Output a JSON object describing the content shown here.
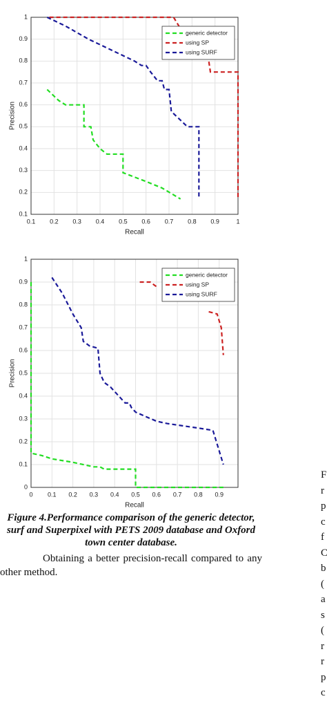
{
  "chart_data": [
    {
      "type": "line",
      "xlabel": "Recall",
      "ylabel": "Precision",
      "xlim": [
        0.1,
        1
      ],
      "ylim": [
        0.1,
        1
      ],
      "xticks": [
        0.1,
        0.2,
        0.3,
        0.4,
        0.5,
        0.6,
        0.7,
        0.8,
        0.9,
        1
      ],
      "yticks": [
        0.1,
        0.2,
        0.3,
        0.4,
        0.5,
        0.6,
        0.7,
        0.8,
        0.9,
        1
      ],
      "grid": true,
      "legend": "upper right",
      "linestyle": "dashed",
      "series": [
        {
          "name": "generic detector",
          "color": "#22dd22",
          "x": [
            0.17,
            0.22,
            0.25,
            0.33,
            0.33,
            0.36,
            0.37,
            0.4,
            0.43,
            0.5,
            0.5,
            0.6,
            0.67,
            0.75
          ],
          "values": [
            0.67,
            0.62,
            0.6,
            0.6,
            0.5,
            0.5,
            0.44,
            0.4,
            0.375,
            0.375,
            0.29,
            0.25,
            0.22,
            0.17
          ]
        },
        {
          "name": "using SP",
          "color": "#cc2222",
          "x": [
            0.18,
            0.72,
            0.8,
            0.82,
            0.87,
            0.88,
            0.98,
            1,
            1
          ],
          "values": [
            1,
            1,
            0.86,
            0.82,
            0.82,
            0.75,
            0.75,
            0.75,
            0.17
          ]
        },
        {
          "name": "using SURF",
          "color": "#1a1a99",
          "x": [
            0.17,
            0.25,
            0.35,
            0.45,
            0.55,
            0.58,
            0.6,
            0.62,
            0.65,
            0.67,
            0.68,
            0.7,
            0.71,
            0.75,
            0.78,
            0.83,
            0.83
          ],
          "values": [
            1,
            0.96,
            0.9,
            0.85,
            0.8,
            0.78,
            0.78,
            0.75,
            0.71,
            0.71,
            0.67,
            0.67,
            0.57,
            0.53,
            0.5,
            0.5,
            0.17
          ]
        }
      ]
    },
    {
      "type": "line",
      "xlabel": "Recall",
      "ylabel": "Precision",
      "xlim": [
        0,
        0.99
      ],
      "ylim": [
        0,
        1
      ],
      "xticks": [
        0,
        0.1,
        0.2,
        0.3,
        0.4,
        0.5,
        0.6,
        0.7,
        0.8,
        0.9
      ],
      "yticks": [
        0,
        0.1,
        0.2,
        0.3,
        0.4,
        0.5,
        0.6,
        0.7,
        0.8,
        0.9,
        1
      ],
      "grid": true,
      "legend": "upper right",
      "linestyle": "dashed",
      "series": [
        {
          "name": "generic detector",
          "color": "#22dd22",
          "x": [
            0,
            0,
            0.05,
            0.1,
            0.2,
            0.3,
            0.33,
            0.35,
            0.5,
            0.5,
            0.92
          ],
          "values": [
            0.9,
            0.15,
            0.14,
            0.125,
            0.11,
            0.09,
            0.09,
            0.08,
            0.08,
            0,
            0
          ]
        },
        {
          "name": "using SP",
          "color": "#cc2222",
          "x": [
            0.52,
            0.57,
            0.6,
            null,
            0.85,
            0.89,
            0.91,
            0.92
          ],
          "values": [
            0.9,
            0.9,
            0.88,
            null,
            0.77,
            0.76,
            0.7,
            0.58
          ]
        },
        {
          "name": "using SURF",
          "color": "#1a1a99",
          "x": [
            0.1,
            0.15,
            0.2,
            0.24,
            0.25,
            0.28,
            0.32,
            0.33,
            0.35,
            0.38,
            0.42,
            0.45,
            0.47,
            0.48,
            0.5,
            0.55,
            0.6,
            0.65,
            0.8,
            0.87,
            0.9,
            0.92
          ],
          "values": [
            0.92,
            0.85,
            0.76,
            0.7,
            0.64,
            0.62,
            0.61,
            0.5,
            0.46,
            0.44,
            0.4,
            0.37,
            0.37,
            0.35,
            0.33,
            0.31,
            0.29,
            0.28,
            0.26,
            0.25,
            0.16,
            0.1
          ]
        }
      ]
    }
  ],
  "caption": "Figure 4.Performance comparison of the generic detector, surf and Superpixel with PETS 2009 database and Oxford town center database.",
  "body_text": "Obtaining a better precision-recall compared to any other method.",
  "right_column_fragments": [
    "F",
    "r",
    "p",
    "c",
    "f",
    "C",
    "b",
    "(",
    "a",
    "s",
    "(",
    "r",
    "r",
    "p",
    "c"
  ]
}
